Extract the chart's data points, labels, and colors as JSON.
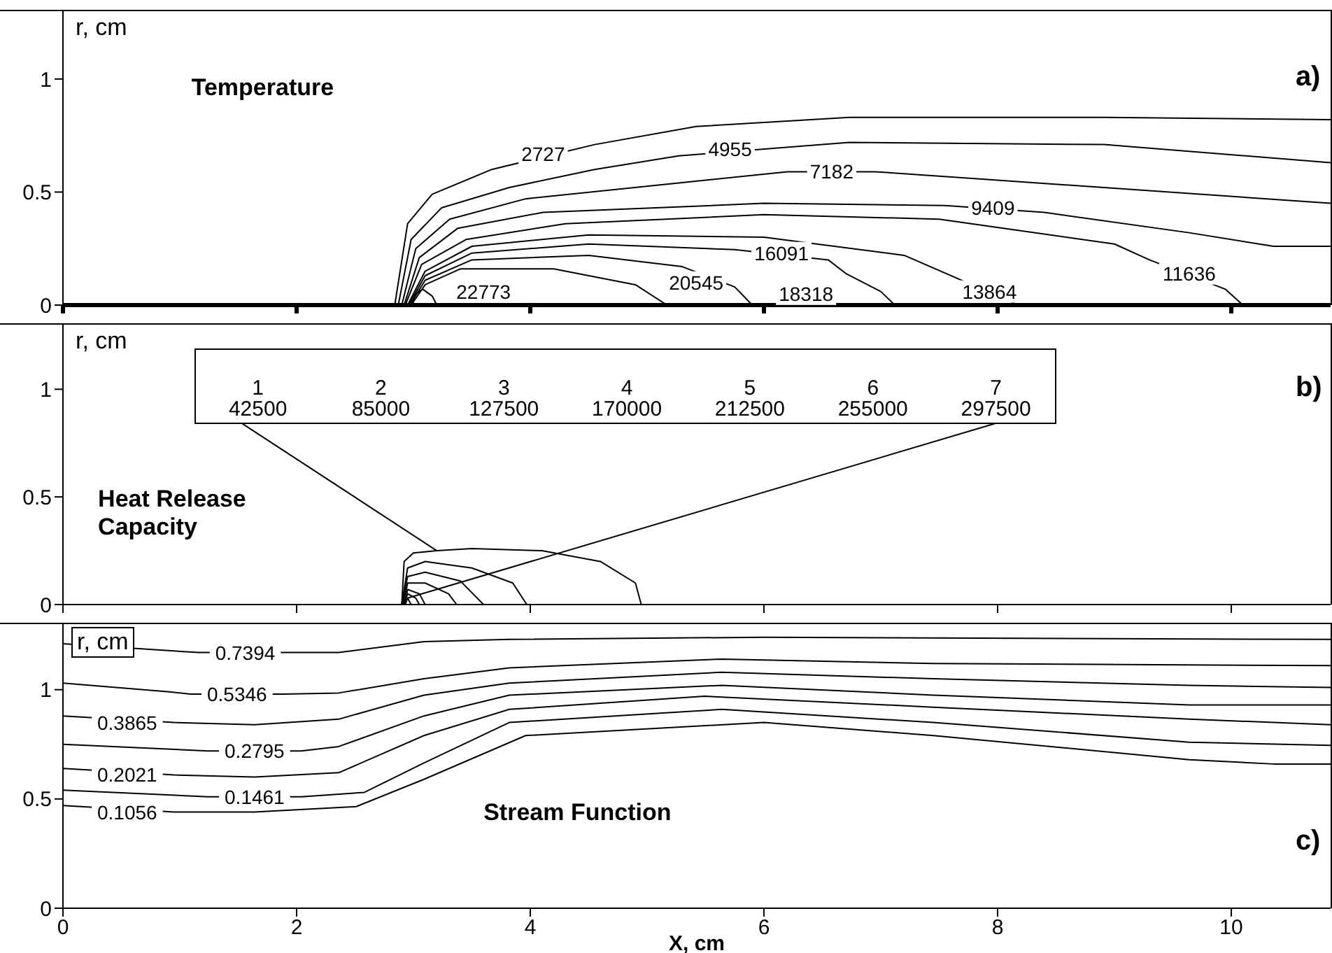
{
  "chart_data": [
    {
      "type": "line",
      "title": "Temperature",
      "ylabel": "r, cm",
      "xlim": [
        0,
        10.85
      ],
      "ylim": [
        0,
        1.3
      ],
      "xticks": [
        0,
        2,
        4,
        6,
        8,
        10
      ],
      "yticks": [
        0,
        0.5,
        1
      ],
      "tick_labels": "y",
      "marker": "none",
      "line_style": "solid",
      "annotations": [
        "a)",
        {
          "text": "2727",
          "x": 4.11,
          "y": 0.67
        },
        {
          "text": "4955",
          "x": 5.71,
          "y": 0.69
        },
        {
          "text": "7182",
          "x": 6.58,
          "y": 0.59
        },
        {
          "text": "9409",
          "x": 7.96,
          "y": 0.43
        },
        {
          "text": "11636",
          "x": 9.64,
          "y": 0.14
        },
        {
          "text": "13864",
          "x": 7.93,
          "y": 0.06
        },
        {
          "text": "16091",
          "x": 6.15,
          "y": 0.23
        },
        "18318",
        "20545",
        "22773"
      ],
      "series": [
        {
          "color": "#000000",
          "x": [
            2.84,
            2.95,
            3.16,
            3.67,
            4.55,
            5.42,
            6.73,
            8.91,
            10.85
          ],
          "values": [
            0,
            0.36,
            0.49,
            0.6,
            0.71,
            0.79,
            0.83,
            0.83,
            0.82
          ]
        },
        {
          "color": "#000000",
          "x": [
            2.87,
            2.98,
            3.24,
            3.82,
            4.55,
            5.27,
            6.73,
            8.91,
            10.85
          ],
          "values": [
            0,
            0.29,
            0.43,
            0.52,
            0.6,
            0.66,
            0.72,
            0.71,
            0.63
          ]
        },
        {
          "color": "#000000",
          "x": [
            2.9,
            3.02,
            3.31,
            3.96,
            5.27,
            6.2,
            6.95,
            8.91,
            10.85
          ],
          "values": [
            0,
            0.25,
            0.38,
            0.47,
            0.54,
            0.59,
            0.59,
            0.52,
            0.45
          ]
        },
        {
          "color": "#000000",
          "x": [
            2.92,
            3.05,
            3.38,
            4.11,
            6,
            7.55,
            8.4,
            9.64,
            10.36,
            10.85
          ],
          "values": [
            0,
            0.21,
            0.34,
            0.41,
            0.45,
            0.44,
            0.41,
            0.32,
            0.26,
            0.26
          ]
        },
        {
          "color": "#000000",
          "x": [
            2.93,
            3.07,
            3.45,
            4.3,
            6,
            7.5,
            9,
            9.3,
            9.95,
            10.1
          ],
          "values": [
            0,
            0.18,
            0.29,
            0.36,
            0.4,
            0.38,
            0.27,
            0.2,
            0.07,
            0
          ]
        },
        {
          "color": "#000000",
          "x": [
            2.95,
            3.1,
            3.5,
            4.5,
            6,
            7.2,
            8.18
          ],
          "values": [
            0,
            0.15,
            0.26,
            0.31,
            0.3,
            0.22,
            0
          ]
        },
        {
          "color": "#000000",
          "x": [
            2.96,
            3.1,
            3.5,
            4.5,
            5.75,
            6.55,
            6.7,
            7,
            7.12
          ],
          "values": [
            0,
            0.13,
            0.23,
            0.27,
            0.245,
            0.2,
            0.14,
            0.06,
            0
          ]
        },
        {
          "color": "#000000",
          "x": [
            2.97,
            3.1,
            3.5,
            4.5,
            5.3,
            5.75,
            5.9
          ],
          "values": [
            0,
            0.11,
            0.2,
            0.22,
            0.17,
            0.08,
            0
          ]
        },
        {
          "color": "#000000",
          "x": [
            2.98,
            3.1,
            3.4,
            4.2,
            4.9,
            5.17
          ],
          "values": [
            0,
            0.09,
            0.16,
            0.16,
            0.09,
            0
          ]
        },
        {
          "color": "#000000",
          "x": [
            2.99,
            3.02,
            3.08,
            3.16,
            3.2
          ],
          "values": [
            0,
            0.05,
            0.07,
            0.04,
            0
          ]
        }
      ]
    },
    {
      "type": "line",
      "title": "Heat Release Capacity",
      "ylabel": "r, cm",
      "xlim": [
        0,
        10.85
      ],
      "ylim": [
        0,
        1.3
      ],
      "xticks": [
        0,
        2,
        4,
        6,
        8,
        10
      ],
      "yticks": [
        0,
        0.5,
        1
      ],
      "tick_labels": "y",
      "marker": "none",
      "line_style": "solid",
      "annotations": [
        "b)",
        {
          "text": "1 42500",
          "x": 3.2,
          "y": 0.25
        },
        "2 85000",
        "3 127500",
        "4 170000",
        "5 212500",
        "6 255000",
        {
          "text": "7 297500",
          "x": 2.95,
          "y": 0.03
        }
      ],
      "series": [
        {
          "color": "#000000",
          "x": [
            2.9,
            2.92,
            3,
            3.2,
            3.5,
            4.1,
            4.6,
            4.9,
            4.95
          ],
          "values": [
            0,
            0.2,
            0.24,
            0.25,
            0.26,
            0.25,
            0.2,
            0.1,
            0
          ]
        },
        {
          "color": "#000000",
          "x": [
            2.9,
            2.95,
            3.1,
            3.5,
            3.85,
            3.97
          ],
          "values": [
            0,
            0.17,
            0.2,
            0.17,
            0.1,
            0
          ]
        },
        {
          "color": "#000000",
          "x": [
            2.9,
            2.95,
            3.1,
            3.4,
            3.6
          ],
          "values": [
            0,
            0.13,
            0.15,
            0.11,
            0
          ]
        },
        {
          "color": "#000000",
          "x": [
            2.91,
            2.95,
            3.1,
            3.3,
            3.37
          ],
          "values": [
            0,
            0.1,
            0.1,
            0.05,
            0
          ]
        },
        {
          "color": "#000000",
          "x": [
            2.92,
            2.95,
            3.05,
            3.1
          ],
          "values": [
            0,
            0.07,
            0.05,
            0
          ]
        },
        {
          "color": "#000000",
          "x": [
            2.92,
            2.95,
            3.02,
            3.05
          ],
          "values": [
            0,
            0.05,
            0.03,
            0
          ]
        },
        {
          "color": "#000000",
          "x": [
            2.93,
            2.95,
            2.98
          ],
          "values": [
            0,
            0.03,
            0
          ]
        }
      ]
    },
    {
      "type": "line",
      "title": "Stream Function",
      "ylabel": "r, cm",
      "xlabel": "X, cm",
      "xlim": [
        0,
        10.85
      ],
      "ylim": [
        0,
        1.3
      ],
      "xticks": [
        0,
        2,
        4,
        6,
        8,
        10
      ],
      "yticks": [
        0,
        0.5,
        1
      ],
      "marker": "none",
      "line_style": "solid",
      "annotations": [
        "c)",
        {
          "text": "0.7394",
          "x": 1.56,
          "y": 1.17
        },
        {
          "text": "0.5346",
          "x": 1.49,
          "y": 0.98
        },
        {
          "text": "0.3865",
          "x": 0.55,
          "y": 0.85
        },
        {
          "text": "0.2795",
          "x": 1.64,
          "y": 0.72
        },
        {
          "text": "0.2021",
          "x": 0.55,
          "y": 0.61
        },
        {
          "text": "0.1461",
          "x": 1.64,
          "y": 0.51
        },
        {
          "text": "0.1056",
          "x": 0.55,
          "y": 0.44
        }
      ],
      "series": [
        {
          "color": "#000000",
          "x": [
            0,
            1.16,
            1.96,
            2.36,
            3.09,
            3.82,
            6,
            10.85
          ],
          "values": [
            1.21,
            1.17,
            1.17,
            1.17,
            1.22,
            1.23,
            1.24,
            1.23
          ]
        },
        {
          "color": "#000000",
          "x": [
            0,
            0.91,
            1.09,
            1.89,
            2.36,
            3.09,
            3.82,
            5.64,
            7.45,
            10.85
          ],
          "values": [
            1.03,
            0.99,
            0.98,
            0.98,
            0.985,
            1.05,
            1.1,
            1.14,
            1.12,
            1.11
          ]
        },
        {
          "color": "#000000",
          "x": [
            0,
            0.95,
            1.64,
            2.36,
            3.09,
            3.82,
            5.64,
            7.45,
            9.64,
            10.85
          ],
          "values": [
            0.88,
            0.85,
            0.84,
            0.865,
            0.975,
            1.03,
            1.08,
            1.05,
            1.02,
            1.01
          ]
        },
        {
          "color": "#000000",
          "x": [
            0,
            1.24,
            2.04,
            2.36,
            3.09,
            3.82,
            5.64,
            7.45,
            9.64,
            10.85
          ],
          "values": [
            0.75,
            0.72,
            0.72,
            0.74,
            0.88,
            0.975,
            1.02,
            0.975,
            0.93,
            0.93
          ]
        },
        {
          "color": "#000000",
          "x": [
            0,
            0.95,
            1.64,
            2.36,
            3.09,
            3.82,
            5.49,
            7.45,
            9.64,
            10.85
          ],
          "values": [
            0.64,
            0.61,
            0.6,
            0.62,
            0.79,
            0.91,
            0.97,
            0.92,
            0.865,
            0.84
          ]
        },
        {
          "color": "#000000",
          "x": [
            0,
            1.24,
            2.04,
            2.58,
            3.09,
            3.82,
            5.64,
            7.45,
            9.64,
            10.85
          ],
          "values": [
            0.54,
            0.51,
            0.51,
            0.53,
            0.665,
            0.85,
            0.91,
            0.85,
            0.76,
            0.745
          ]
        },
        {
          "color": "#000000",
          "x": [
            0,
            0.95,
            1.64,
            2.51,
            3.09,
            3.96,
            6,
            7.45,
            9.64,
            10.36,
            10.85
          ],
          "values": [
            0.47,
            0.44,
            0.44,
            0.465,
            0.59,
            0.79,
            0.85,
            0.79,
            0.68,
            0.66,
            0.66
          ]
        }
      ]
    }
  ]
}
